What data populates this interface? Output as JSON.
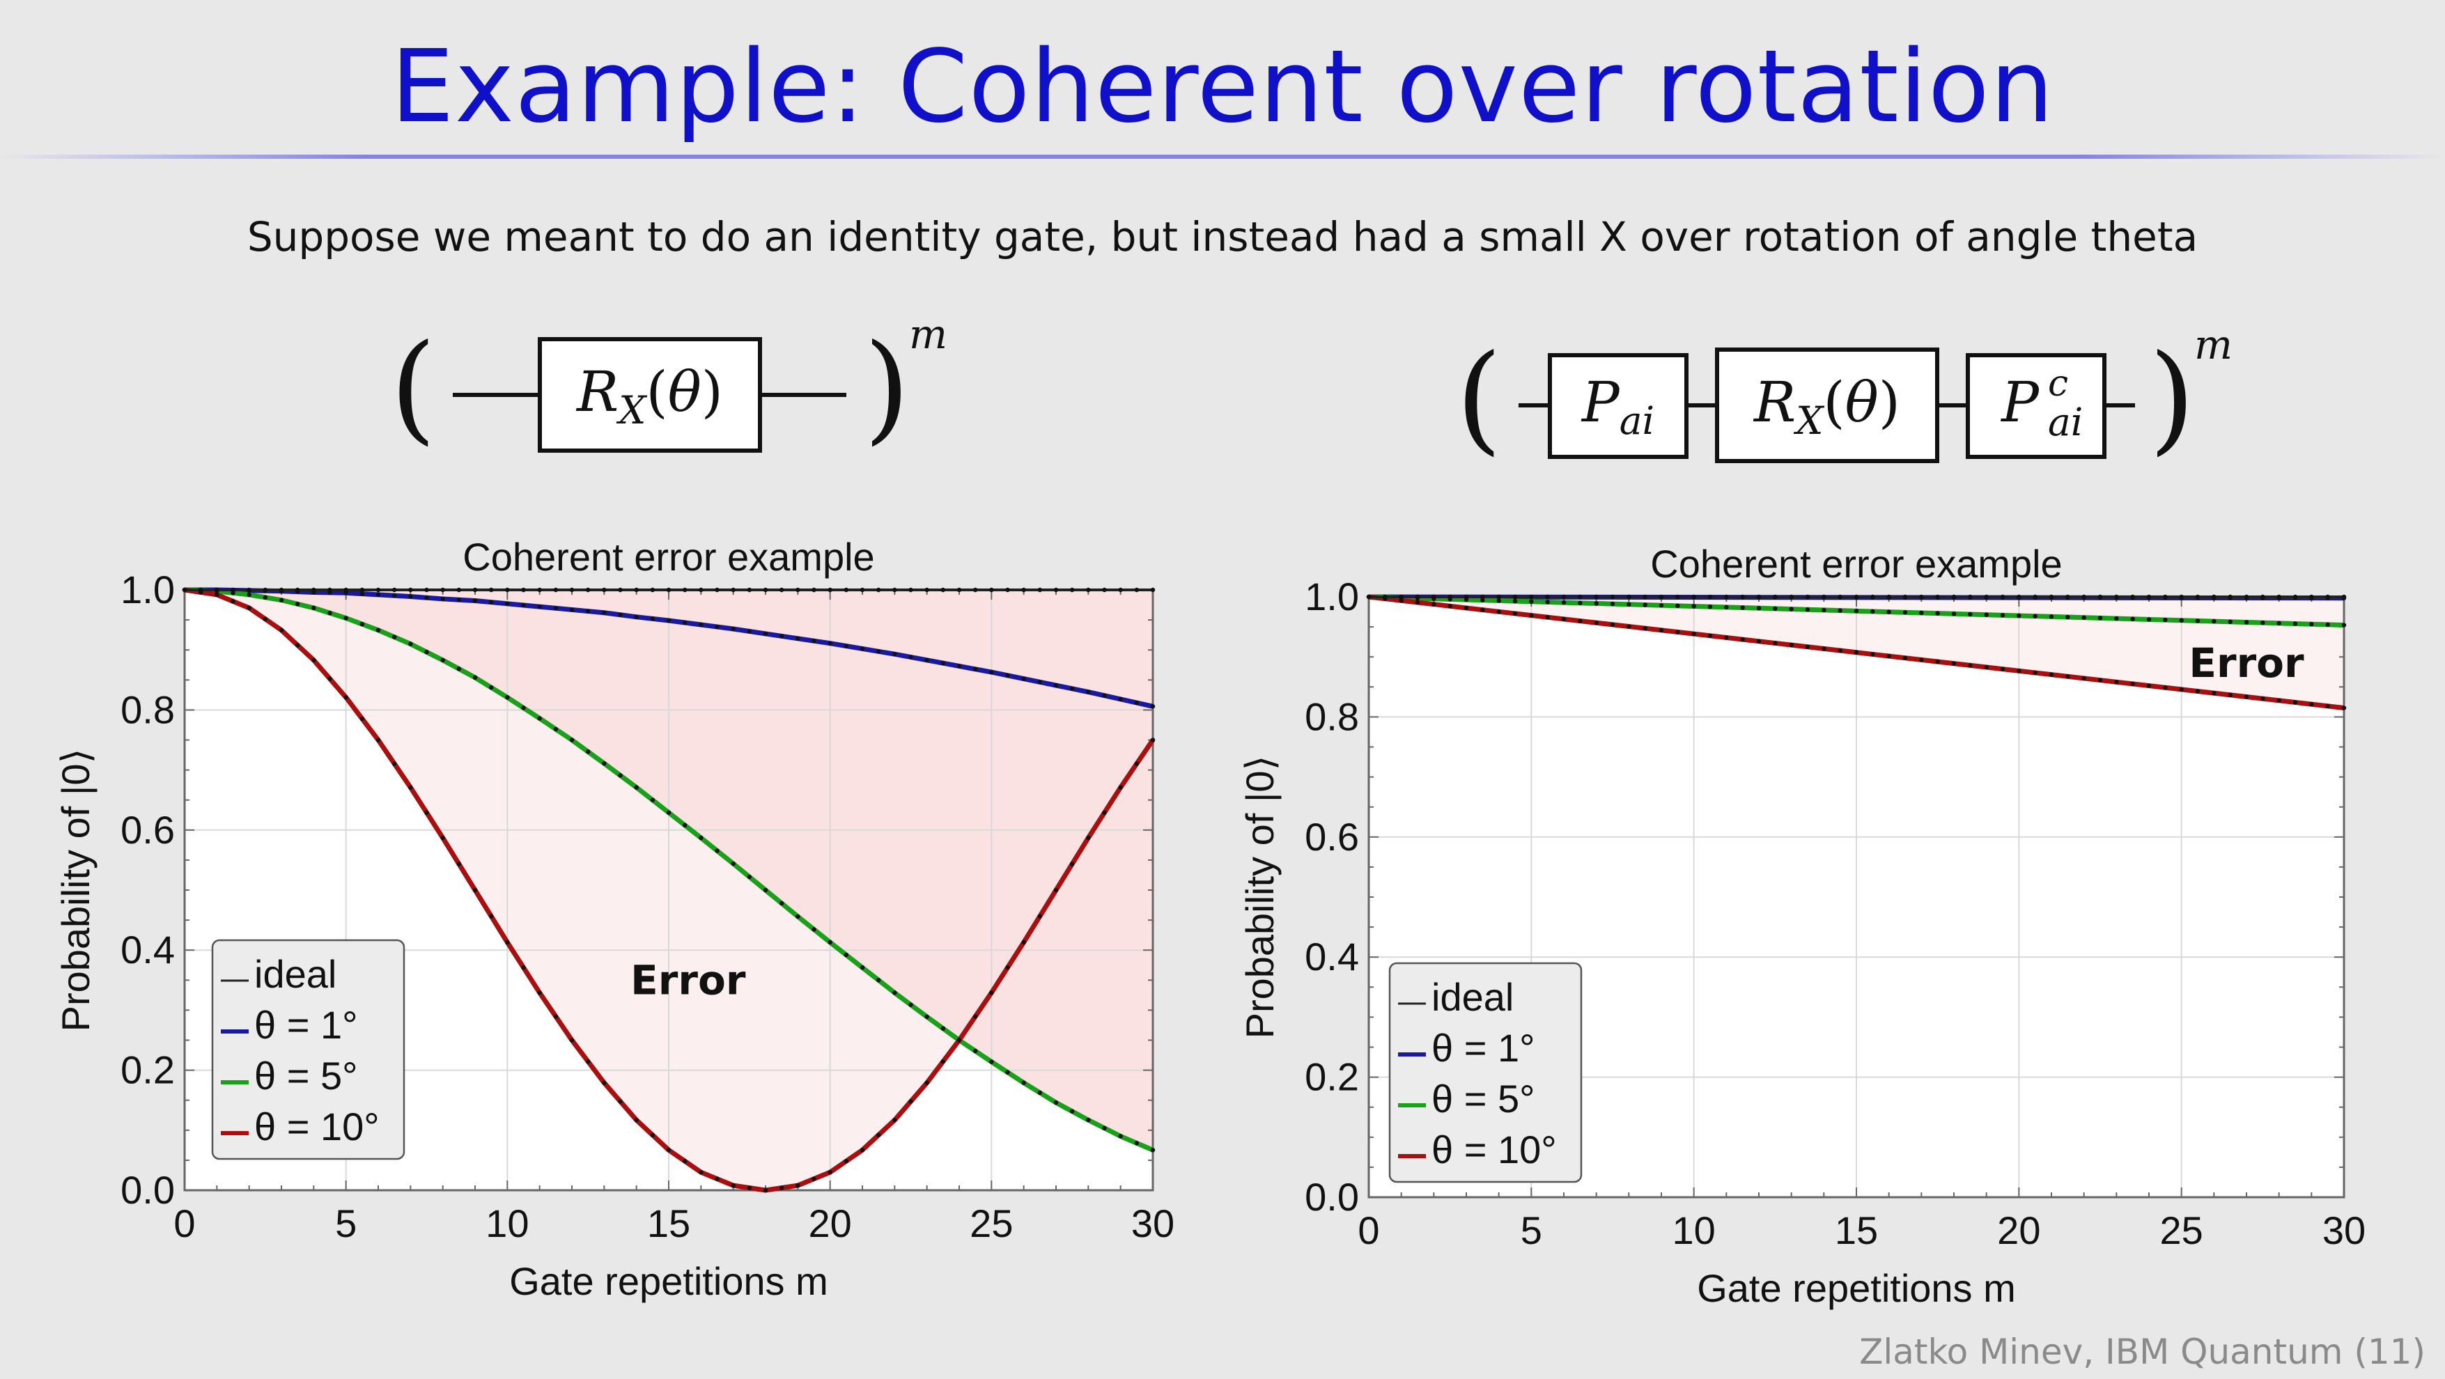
{
  "slide": {
    "title": "Example: Coherent over rotation",
    "subtitle": "Suppose we meant to do an identity gate, but instead had a small X over rotation of angle theta",
    "footer": "Zlatko Minev, IBM Quantum (11)"
  },
  "circuits": {
    "left": {
      "gates": [
        "R_X(θ)"
      ],
      "exponent": "m"
    },
    "right": {
      "gates": [
        "P_ai",
        "R_X(θ)",
        "P^c_ai"
      ],
      "exponent": "m"
    }
  },
  "colors": {
    "ideal": "#222222",
    "theta1": "#1a1a9e",
    "theta5": "#1aa01a",
    "theta10": "#a81010",
    "error_fill": "#fbe2e2",
    "title_blue": "#1010c8"
  },
  "chart_data": [
    {
      "type": "line",
      "title": "Coherent error example",
      "xlabel": "Gate repetitions m",
      "ylabel": "Probability of |0⟩",
      "xlim": [
        0,
        30
      ],
      "ylim": [
        0,
        1
      ],
      "xticks": [
        "0",
        "5",
        "10",
        "15",
        "20",
        "25",
        "30"
      ],
      "yticks": [
        "0.0",
        "0.2",
        "0.4",
        "0.6",
        "0.8",
        "1.0"
      ],
      "grid": true,
      "legend": "bottom-left",
      "legend_entries": [
        "ideal",
        "θ = 1°",
        "θ = 5°",
        "θ = 10°"
      ],
      "annotation": "Error",
      "x": [
        0,
        1,
        2,
        3,
        4,
        5,
        6,
        7,
        8,
        9,
        10,
        11,
        12,
        13,
        14,
        15,
        16,
        17,
        18,
        19,
        20,
        21,
        22,
        23,
        24,
        25,
        26,
        27,
        28,
        29,
        30
      ],
      "series": [
        {
          "name": "ideal",
          "values": [
            1,
            1,
            1,
            1,
            1,
            1,
            1,
            1,
            1,
            1,
            1,
            1,
            1,
            1,
            1,
            1,
            1,
            1,
            1,
            1,
            1,
            1,
            1,
            1,
            1,
            1,
            1,
            1,
            1,
            1,
            1
          ]
        },
        {
          "name": "θ = 1°",
          "values": [
            1.0,
            1.0,
            0.999,
            0.998,
            0.996,
            0.995,
            0.992,
            0.989,
            0.985,
            0.982,
            0.977,
            0.972,
            0.967,
            0.962,
            0.955,
            0.949,
            0.942,
            0.935,
            0.927,
            0.919,
            0.911,
            0.902,
            0.893,
            0.883,
            0.873,
            0.863,
            0.852,
            0.841,
            0.83,
            0.818,
            0.806
          ]
        },
        {
          "name": "θ = 5°",
          "values": [
            1.0,
            0.998,
            0.992,
            0.983,
            0.97,
            0.953,
            0.933,
            0.91,
            0.883,
            0.854,
            0.821,
            0.786,
            0.75,
            0.711,
            0.671,
            0.629,
            0.587,
            0.544,
            0.5,
            0.456,
            0.413,
            0.371,
            0.329,
            0.289,
            0.25,
            0.214,
            0.179,
            0.146,
            0.117,
            0.09,
            0.067
          ]
        },
        {
          "name": "θ = 10°",
          "values": [
            1.0,
            0.992,
            0.97,
            0.933,
            0.883,
            0.821,
            0.75,
            0.671,
            0.587,
            0.5,
            0.413,
            0.329,
            0.25,
            0.179,
            0.117,
            0.067,
            0.03,
            0.008,
            0.0,
            0.008,
            0.03,
            0.067,
            0.117,
            0.179,
            0.25,
            0.329,
            0.413,
            0.5,
            0.587,
            0.671,
            0.75
          ]
        }
      ]
    },
    {
      "type": "line",
      "title": "Coherent error example",
      "xlabel": "Gate repetitions m",
      "ylabel": "Probability of |0⟩",
      "xlim": [
        0,
        30
      ],
      "ylim": [
        0,
        1
      ],
      "xticks": [
        "0",
        "5",
        "10",
        "15",
        "20",
        "25",
        "30"
      ],
      "yticks": [
        "0.0",
        "0.2",
        "0.4",
        "0.6",
        "0.8",
        "1.0"
      ],
      "grid": true,
      "legend": "bottom-left",
      "legend_entries": [
        "ideal",
        "θ = 1°",
        "θ = 5°",
        "θ = 10°"
      ],
      "annotation": "Error",
      "x": [
        0,
        30
      ],
      "series": [
        {
          "name": "ideal",
          "values": [
            1.0,
            1.0
          ]
        },
        {
          "name": "θ = 1°",
          "values": [
            1.0,
            0.998
          ]
        },
        {
          "name": "θ = 5°",
          "values": [
            1.0,
            0.953
          ]
        },
        {
          "name": "θ = 10°",
          "values": [
            1.0,
            0.815
          ]
        }
      ]
    }
  ]
}
